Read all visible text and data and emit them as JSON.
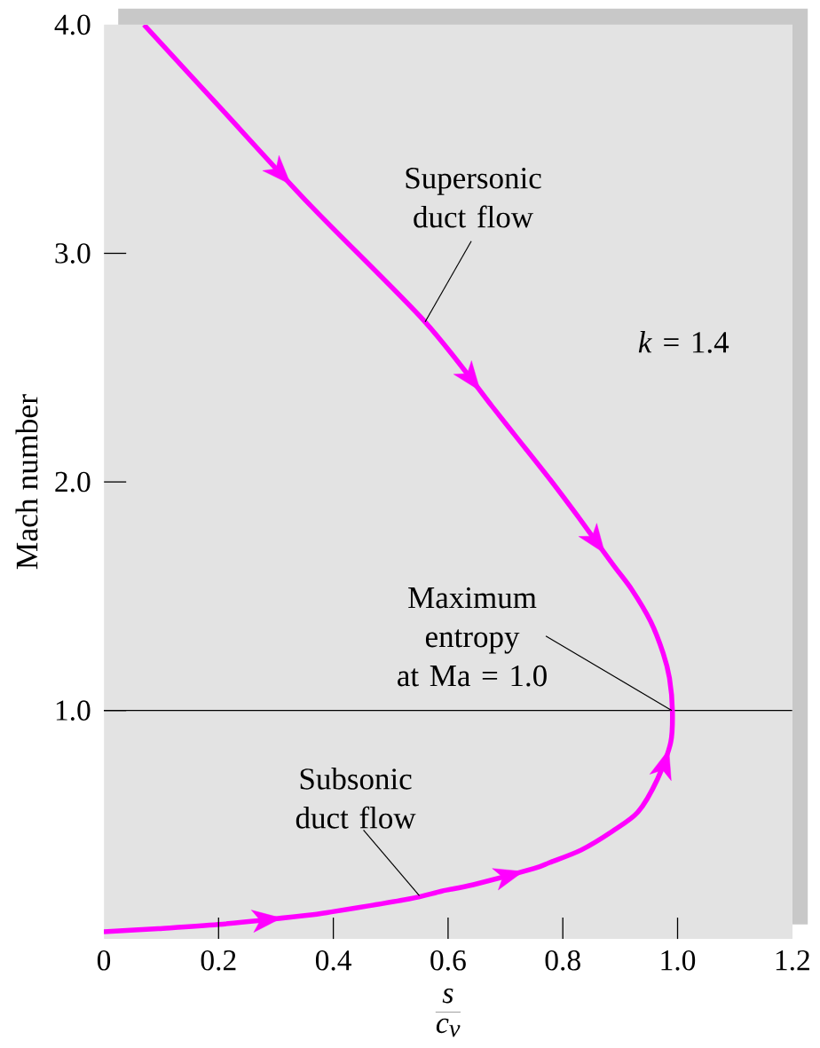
{
  "chart_data": {
    "type": "line",
    "xlabel": "\\frac{s}{c_v}",
    "ylabel": "Mach number",
    "x": [
      0,
      0.095,
      0.2,
      0.35,
      0.399,
      0.532,
      0.589,
      0.644,
      0.75,
      0.777,
      0.832,
      0.887,
      0.931,
      0.965,
      0.988,
      0.991,
      0.986,
      0.975,
      0.953,
      0.92,
      0.887,
      0.826,
      0.778,
      0.718,
      0.677,
      0.56,
      0.36,
      0.202,
      0.07
    ],
    "series": [
      {
        "color": "#ff00ff",
        "values": [
          0.032,
          0.046,
          0.064,
          0.103,
          0.12,
          0.176,
          0.21,
          0.238,
          0.309,
          0.335,
          0.39,
          0.473,
          0.556,
          0.7,
          0.86,
          1.0,
          1.14,
          1.25,
          1.39,
          1.53,
          1.64,
          1.85,
          2.01,
          2.2,
          2.33,
          2.7,
          3.21,
          3.64,
          4.0
        ]
      }
    ],
    "xlim": [
      0,
      1.2
    ],
    "ylim": [
      0,
      4
    ],
    "xticks": [
      0,
      0.2,
      0.4,
      0.6,
      0.8,
      {
        "value": 1,
        "label": "1.0"
      },
      1.2
    ],
    "yticks": [
      {
        "value": 1,
        "label": "1.0"
      },
      {
        "value": 2,
        "label": "2.0"
      },
      {
        "value": 3,
        "label": "3.0"
      },
      {
        "value": 4,
        "label": "4.0"
      }
    ],
    "ref_lines": [
      {
        "axis": "y",
        "value": 1,
        "color": "#000000"
      }
    ],
    "annotations": [
      {
        "text": "Supersonic duct flow",
        "x": 0.56,
        "y": 2.7
      },
      {
        "text": "Subsonic duct flow",
        "x": 0.55,
        "y": 0.19
      },
      {
        "text": "Maximum entropy at Ma = 1.0",
        "x": 0.99,
        "y": 1.0
      },
      "*k* = 1.4"
    ]
  }
}
